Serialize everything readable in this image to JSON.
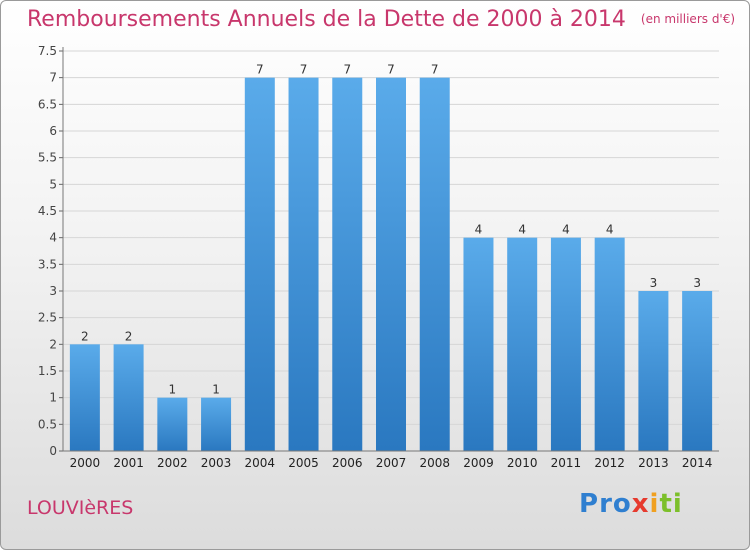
{
  "chart_data": {
    "type": "bar",
    "title": "Remboursements Annuels de la Dette de 2000 à 2014",
    "unit": "(en milliers d'€)",
    "categories": [
      "2000",
      "2001",
      "2002",
      "2003",
      "2004",
      "2005",
      "2006",
      "2007",
      "2008",
      "2009",
      "2010",
      "2011",
      "2012",
      "2013",
      "2014"
    ],
    "values": [
      2,
      2,
      1,
      1,
      7,
      7,
      7,
      7,
      7,
      4,
      4,
      4,
      4,
      3,
      3
    ],
    "data_labels": [
      "2",
      "2",
      "1",
      "1",
      "7",
      "7",
      "7",
      "7",
      "7",
      "4",
      "4",
      "4",
      "4",
      "3",
      "3"
    ],
    "y_ticks": [
      "0",
      "0.5",
      "1",
      "1.5",
      "2",
      "2.5",
      "3",
      "3.5",
      "4",
      "4.5",
      "5",
      "5.5",
      "6",
      "6.5",
      "7",
      "7.5"
    ],
    "ylim": [
      0,
      7.5
    ],
    "grid": "horizontal",
    "bar_color": "#4a9fe0"
  },
  "footer": {
    "city": "LOUVIèRES",
    "logo_letters": [
      {
        "ch": "P",
        "color": "#2f7fd0"
      },
      {
        "ch": "r",
        "color": "#2f7fd0"
      },
      {
        "ch": "o",
        "color": "#2f7fd0"
      },
      {
        "ch": "x",
        "color": "#e63a2e"
      },
      {
        "ch": "i",
        "color": "#f0a020"
      },
      {
        "ch": "t",
        "color": "#7cbf2a"
      },
      {
        "ch": "i",
        "color": "#7cbf2a"
      }
    ]
  }
}
